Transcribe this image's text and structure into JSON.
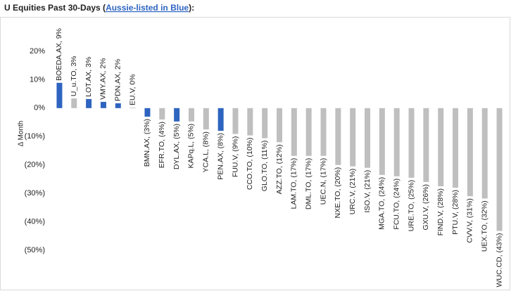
{
  "chart_data": {
    "type": "bar",
    "title": "U Equities Past 30-Days (",
    "title_highlight": "Aussie-listed in Blue",
    "title_end": "):",
    "y_label": "Δ Month",
    "values": [
      8.9,
      3.4,
      3.2,
      2.2,
      1.7,
      0.2,
      -3.0,
      -4.0,
      -4.7,
      -4.7,
      -7.5,
      -8.0,
      -9.1,
      -9.6,
      -10.6,
      -12.0,
      -16.8,
      -16.8,
      -16.8,
      -20.0,
      -20.5,
      -21.0,
      -23.5,
      -24.0,
      -24.5,
      -26.0,
      -27.5,
      -28.0,
      -31.0,
      -31.8,
      -43.2
    ],
    "value_labels": [
      "BOEDA.AX, 9%",
      "U_u.TO, 3%",
      "LOT.AX, 3%",
      "VMY.AX, 2%",
      "PDN.AX, 2%",
      "EU.V, 0%",
      "BMN.AX, (3%)",
      "EFR.TO, (4%)",
      "DYL.AX, (5%)",
      "KAPq.L, (5%)",
      "YCA.L, (8%)",
      "PEN.AX, (8%)",
      "FUU.V, (9%)",
      "CCO.TO, (10%)",
      "GLO.TO, (11%)",
      "AZZ.TO, (12%)",
      "LAM.TO, (17%)",
      "DML.TO, (17%)",
      "UEC.N, (17%)",
      "NXE.TO, (20%)",
      "URC.V, (21%)",
      "ISO.V, (21%)",
      "MGA.TO, (24%)",
      "FCU.TO, (24%)",
      "URE.TO, (25%)",
      "GXU.V, (26%)",
      "FIND.V, (28%)",
      "PTU.V, (28%)",
      "CVV.V, (31%)",
      "UEX.TO, (32%)",
      "WUC.CD, (43%)"
    ],
    "colors": [
      "#2e64c0",
      "#bfbfbf",
      "#2e64c0",
      "#2e64c0",
      "#2e64c0",
      "#bfbfbf",
      "#2e64c0",
      "#bfbfbf",
      "#2e64c0",
      "#bfbfbf",
      "#bfbfbf",
      "#2e64c0",
      "#bfbfbf",
      "#bfbfbf",
      "#bfbfbf",
      "#bfbfbf",
      "#bfbfbf",
      "#bfbfbf",
      "#bfbfbf",
      "#bfbfbf",
      "#bfbfbf",
      "#bfbfbf",
      "#bfbfbf",
      "#bfbfbf",
      "#bfbfbf",
      "#bfbfbf",
      "#bfbfbf",
      "#bfbfbf",
      "#bfbfbf",
      "#bfbfbf",
      "#bfbfbf"
    ],
    "highlight_color": "#2e64c0",
    "ylim": [
      -50,
      30
    ],
    "yticks": [
      {
        "value": 20,
        "label": "20%"
      },
      {
        "value": 10,
        "label": "10%"
      },
      {
        "value": 0,
        "label": "0%"
      },
      {
        "value": -10,
        "label": "(10%)"
      },
      {
        "value": -20,
        "label": "(20%)"
      },
      {
        "value": -30,
        "label": "(30%)"
      },
      {
        "value": -40,
        "label": "(40%)"
      },
      {
        "value": -50,
        "label": "(50%)"
      }
    ]
  }
}
